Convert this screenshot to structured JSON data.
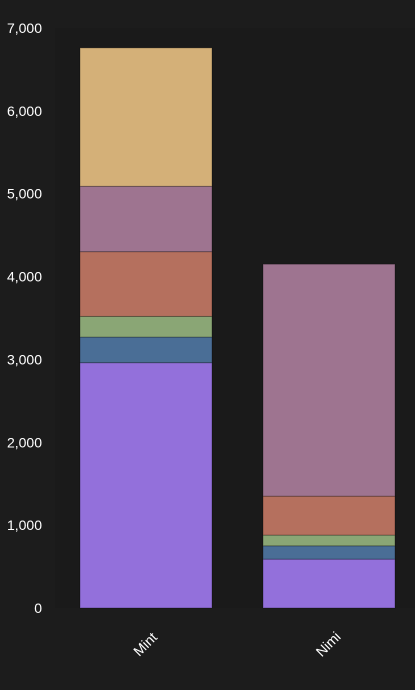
{
  "chart_data": {
    "type": "bar",
    "stacked": true,
    "categories": [
      "Mint",
      "Nimi"
    ],
    "ylim": [
      0,
      7000
    ],
    "y_ticks": [
      0,
      1000,
      2000,
      3000,
      4000,
      5000,
      6000,
      7000
    ],
    "y_tick_labels": [
      "0",
      "1,000",
      "2,000",
      "3,000",
      "4,000",
      "5,000",
      "6,000",
      "7,000"
    ],
    "grid": false,
    "legend": "none",
    "background": "#1c1c1c",
    "plot_background": "#1a1a1a",
    "series": [
      {
        "color": "#9370db",
        "values": [
          2960,
          590
        ]
      },
      {
        "color": "#4a6e96",
        "values": [
          310,
          160
        ]
      },
      {
        "color": "#8aa675",
        "values": [
          250,
          130
        ]
      },
      {
        "color": "#b5705e",
        "values": [
          780,
          470
        ]
      },
      {
        "color": "#9e7490",
        "values": [
          790,
          2800
        ]
      },
      {
        "color": "#d4b078",
        "values": [
          1670,
          0
        ]
      }
    ]
  }
}
